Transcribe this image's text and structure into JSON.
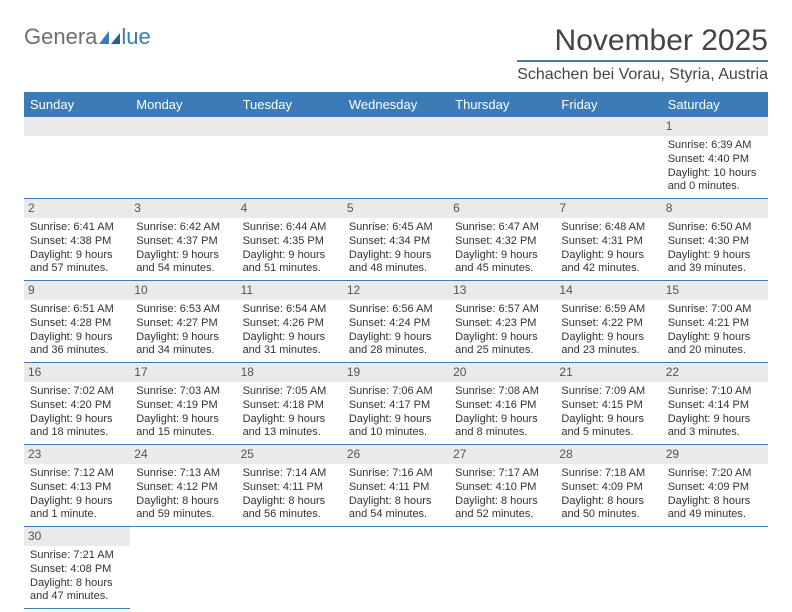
{
  "brand": {
    "general": "Genera",
    "blue": "lue"
  },
  "header": {
    "month": "November 2025",
    "location": "Schachen bei Vorau, Styria, Austria"
  },
  "colors": {
    "accent": "#3c7bb5",
    "gray": "#6f6f6f",
    "dayHeaderBg": "#eaeaea",
    "text": "#333333",
    "bg": "#ffffff"
  },
  "calendar": {
    "dayNames": [
      "Sunday",
      "Monday",
      "Tuesday",
      "Wednesday",
      "Thursday",
      "Friday",
      "Saturday"
    ],
    "rows": [
      [
        null,
        null,
        null,
        null,
        null,
        null,
        {
          "n": 1,
          "sr": "6:39 AM",
          "ss": "4:40 PM",
          "dl": "10 hours and 0 minutes."
        }
      ],
      [
        {
          "n": 2,
          "sr": "6:41 AM",
          "ss": "4:38 PM",
          "dl": "9 hours and 57 minutes."
        },
        {
          "n": 3,
          "sr": "6:42 AM",
          "ss": "4:37 PM",
          "dl": "9 hours and 54 minutes."
        },
        {
          "n": 4,
          "sr": "6:44 AM",
          "ss": "4:35 PM",
          "dl": "9 hours and 51 minutes."
        },
        {
          "n": 5,
          "sr": "6:45 AM",
          "ss": "4:34 PM",
          "dl": "9 hours and 48 minutes."
        },
        {
          "n": 6,
          "sr": "6:47 AM",
          "ss": "4:32 PM",
          "dl": "9 hours and 45 minutes."
        },
        {
          "n": 7,
          "sr": "6:48 AM",
          "ss": "4:31 PM",
          "dl": "9 hours and 42 minutes."
        },
        {
          "n": 8,
          "sr": "6:50 AM",
          "ss": "4:30 PM",
          "dl": "9 hours and 39 minutes."
        }
      ],
      [
        {
          "n": 9,
          "sr": "6:51 AM",
          "ss": "4:28 PM",
          "dl": "9 hours and 36 minutes."
        },
        {
          "n": 10,
          "sr": "6:53 AM",
          "ss": "4:27 PM",
          "dl": "9 hours and 34 minutes."
        },
        {
          "n": 11,
          "sr": "6:54 AM",
          "ss": "4:26 PM",
          "dl": "9 hours and 31 minutes."
        },
        {
          "n": 12,
          "sr": "6:56 AM",
          "ss": "4:24 PM",
          "dl": "9 hours and 28 minutes."
        },
        {
          "n": 13,
          "sr": "6:57 AM",
          "ss": "4:23 PM",
          "dl": "9 hours and 25 minutes."
        },
        {
          "n": 14,
          "sr": "6:59 AM",
          "ss": "4:22 PM",
          "dl": "9 hours and 23 minutes."
        },
        {
          "n": 15,
          "sr": "7:00 AM",
          "ss": "4:21 PM",
          "dl": "9 hours and 20 minutes."
        }
      ],
      [
        {
          "n": 16,
          "sr": "7:02 AM",
          "ss": "4:20 PM",
          "dl": "9 hours and 18 minutes."
        },
        {
          "n": 17,
          "sr": "7:03 AM",
          "ss": "4:19 PM",
          "dl": "9 hours and 15 minutes."
        },
        {
          "n": 18,
          "sr": "7:05 AM",
          "ss": "4:18 PM",
          "dl": "9 hours and 13 minutes."
        },
        {
          "n": 19,
          "sr": "7:06 AM",
          "ss": "4:17 PM",
          "dl": "9 hours and 10 minutes."
        },
        {
          "n": 20,
          "sr": "7:08 AM",
          "ss": "4:16 PM",
          "dl": "9 hours and 8 minutes."
        },
        {
          "n": 21,
          "sr": "7:09 AM",
          "ss": "4:15 PM",
          "dl": "9 hours and 5 minutes."
        },
        {
          "n": 22,
          "sr": "7:10 AM",
          "ss": "4:14 PM",
          "dl": "9 hours and 3 minutes."
        }
      ],
      [
        {
          "n": 23,
          "sr": "7:12 AM",
          "ss": "4:13 PM",
          "dl": "9 hours and 1 minute."
        },
        {
          "n": 24,
          "sr": "7:13 AM",
          "ss": "4:12 PM",
          "dl": "8 hours and 59 minutes."
        },
        {
          "n": 25,
          "sr": "7:14 AM",
          "ss": "4:11 PM",
          "dl": "8 hours and 56 minutes."
        },
        {
          "n": 26,
          "sr": "7:16 AM",
          "ss": "4:11 PM",
          "dl": "8 hours and 54 minutes."
        },
        {
          "n": 27,
          "sr": "7:17 AM",
          "ss": "4:10 PM",
          "dl": "8 hours and 52 minutes."
        },
        {
          "n": 28,
          "sr": "7:18 AM",
          "ss": "4:09 PM",
          "dl": "8 hours and 50 minutes."
        },
        {
          "n": 29,
          "sr": "7:20 AM",
          "ss": "4:09 PM",
          "dl": "8 hours and 49 minutes."
        }
      ],
      [
        {
          "n": 30,
          "sr": "7:21 AM",
          "ss": "4:08 PM",
          "dl": "8 hours and 47 minutes."
        },
        null,
        null,
        null,
        null,
        null,
        null
      ]
    ],
    "labels": {
      "sunrise": "Sunrise: ",
      "sunset": "Sunset: ",
      "daylight": "Daylight: "
    }
  }
}
